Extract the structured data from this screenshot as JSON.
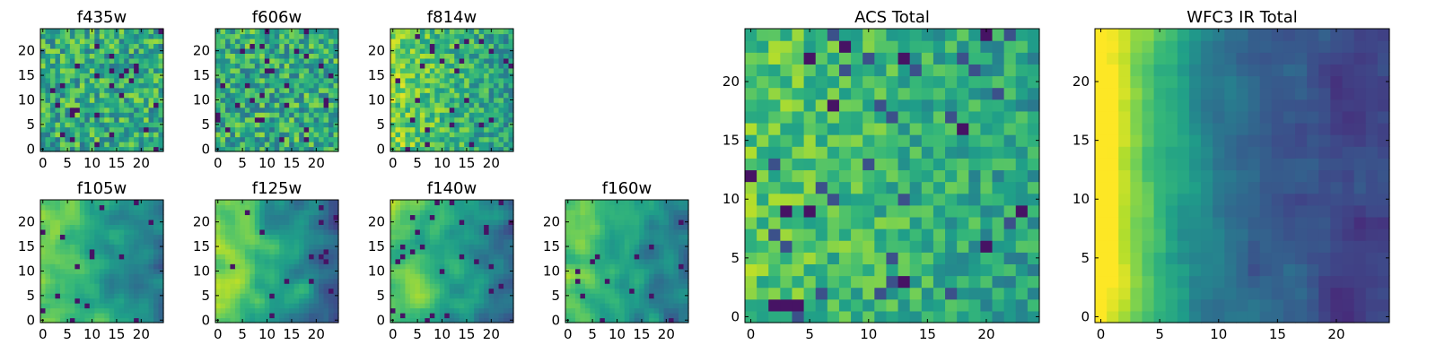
{
  "chart_data": [
    {
      "type": "heatmap",
      "title": "f435w",
      "xticks": [
        "0",
        "5",
        "10",
        "15",
        "20"
      ],
      "yticks": [
        "0",
        "5",
        "10",
        "15",
        "20"
      ],
      "grid_size": 25,
      "colormap": "viridis",
      "texture": "noise",
      "seed": 11
    },
    {
      "type": "heatmap",
      "title": "f606w",
      "xticks": [
        "0",
        "5",
        "10",
        "15",
        "20"
      ],
      "yticks": [
        "0",
        "5",
        "10",
        "15",
        "20"
      ],
      "grid_size": 25,
      "colormap": "viridis",
      "texture": "noise",
      "seed": 23
    },
    {
      "type": "heatmap",
      "title": "f814w",
      "xticks": [
        "0",
        "5",
        "10",
        "15",
        "20"
      ],
      "yticks": [
        "0",
        "5",
        "10",
        "15",
        "20"
      ],
      "grid_size": 25,
      "colormap": "viridis",
      "texture": "noise-left-bright",
      "seed": 37
    },
    {
      "type": "heatmap",
      "title": "f105w",
      "xticks": [
        "0",
        "5",
        "10",
        "15",
        "20"
      ],
      "yticks": [
        "0",
        "5",
        "10",
        "15",
        "20"
      ],
      "grid_size": 25,
      "colormap": "viridis",
      "texture": "smooth-left-bright",
      "seed": 41
    },
    {
      "type": "heatmap",
      "title": "f125w",
      "xticks": [
        "0",
        "5",
        "10",
        "15",
        "20"
      ],
      "yticks": [
        "0",
        "5",
        "10",
        "15",
        "20"
      ],
      "grid_size": 25,
      "colormap": "viridis",
      "texture": "smooth-left-bright",
      "seed": 53
    },
    {
      "type": "heatmap",
      "title": "f140w",
      "xticks": [
        "0",
        "5",
        "10",
        "15",
        "20"
      ],
      "yticks": [
        "0",
        "5",
        "10",
        "15",
        "20"
      ],
      "grid_size": 25,
      "colormap": "viridis",
      "texture": "smooth-left-bright",
      "seed": 67
    },
    {
      "type": "heatmap",
      "title": "f160w",
      "xticks": [
        "0",
        "5",
        "10",
        "15",
        "20"
      ],
      "yticks": [
        "0",
        "5",
        "10",
        "15",
        "20"
      ],
      "grid_size": 25,
      "colormap": "viridis",
      "texture": "smooth-left-bright",
      "seed": 79
    },
    {
      "type": "heatmap",
      "title": "ACS Total",
      "xticks": [
        "0",
        "5",
        "10",
        "15",
        "20"
      ],
      "yticks": [
        "0",
        "5",
        "10",
        "15",
        "20"
      ],
      "grid_size": 25,
      "colormap": "viridis",
      "texture": "noise-bright",
      "seed": 97
    },
    {
      "type": "heatmap",
      "title": "WFC3 IR Total",
      "xticks": [
        "0",
        "5",
        "10",
        "15",
        "20"
      ],
      "yticks": [
        "0",
        "5",
        "10",
        "15",
        "20"
      ],
      "grid_size": 25,
      "colormap": "viridis",
      "texture": "gradient-left-bright",
      "seed": 131
    }
  ]
}
